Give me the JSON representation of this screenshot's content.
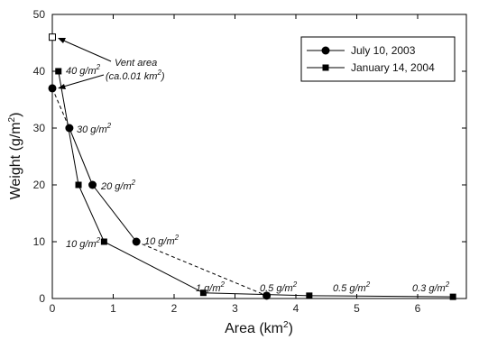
{
  "chart_data": {
    "type": "line",
    "title": "",
    "xlabel": "Area (km",
    "xlabel_sup": "2",
    "xlabel_end": ")",
    "ylabel": "Weight (g/m",
    "ylabel_sup": "2",
    "ylabel_end": ")",
    "xlim": [
      0,
      6.8
    ],
    "ylim": [
      0,
      50
    ],
    "x_ticks": [
      0,
      1,
      2,
      3,
      4,
      5,
      6
    ],
    "y_ticks": [
      0,
      10,
      20,
      30,
      40,
      50
    ],
    "grid": false,
    "legend_position": "top-right",
    "series": [
      {
        "name": "July 10, 2003",
        "marker": "circle",
        "points": [
          [
            0.0,
            37
          ],
          [
            0.28,
            30
          ],
          [
            0.66,
            20
          ],
          [
            1.38,
            10
          ],
          [
            3.52,
            0.5
          ]
        ],
        "dashed_segments": [
          [
            0,
            1
          ],
          [
            3,
            4
          ]
        ]
      },
      {
        "name": "January 14, 2004",
        "marker": "square",
        "points": [
          [
            0.1,
            40
          ],
          [
            0.43,
            20
          ],
          [
            0.85,
            10
          ],
          [
            2.48,
            1
          ],
          [
            4.22,
            0.5
          ],
          [
            6.58,
            0.3
          ]
        ],
        "dashed_segments": []
      }
    ],
    "vent_point": [
      0.0,
      46
    ],
    "annotations": {
      "vent": [
        "Vent area",
        "(ca.0.01 km",
        "2",
        ")"
      ],
      "labels": [
        {
          "base": "40 g/m",
          "sup": "2"
        },
        {
          "base": "30 g/m",
          "sup": "2"
        },
        {
          "base": "20 g/m",
          "sup": "2"
        },
        {
          "base": "10 g/m",
          "sup": "2"
        },
        {
          "base": "10 g/m",
          "sup": "2"
        },
        {
          "base": "1 g/m",
          "sup": "2"
        },
        {
          "base": "0.5 g/m",
          "sup": "2"
        },
        {
          "base": "0.5 g/m",
          "sup": "2"
        },
        {
          "base": "0.3 g/m",
          "sup": "2"
        }
      ]
    }
  }
}
